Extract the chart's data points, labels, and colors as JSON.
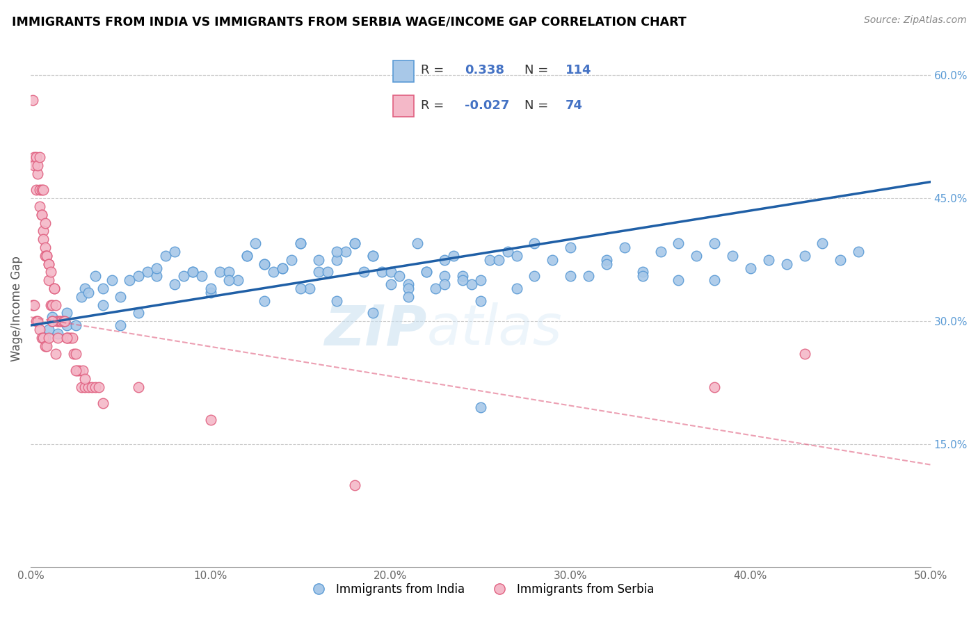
{
  "title": "IMMIGRANTS FROM INDIA VS IMMIGRANTS FROM SERBIA WAGE/INCOME GAP CORRELATION CHART",
  "source": "Source: ZipAtlas.com",
  "ylabel": "Wage/Income Gap",
  "xlim": [
    0.0,
    0.5
  ],
  "ylim": [
    0.0,
    0.63
  ],
  "xticks": [
    0.0,
    0.1,
    0.2,
    0.3,
    0.4,
    0.5
  ],
  "yticks_right": [
    0.15,
    0.3,
    0.45,
    0.6
  ],
  "ytick_labels_right": [
    "15.0%",
    "30.0%",
    "45.0%",
    "60.0%"
  ],
  "xtick_labels": [
    "0.0%",
    "10.0%",
    "20.0%",
    "30.0%",
    "40.0%",
    "50.0%"
  ],
  "india_color": "#a8c8e8",
  "india_edge": "#5b9bd5",
  "serbia_color": "#f4b8c8",
  "serbia_edge": "#e06080",
  "india_line_color": "#1f5fa6",
  "serbia_line_color": "#f4b8c8",
  "serbia_line_edge": "#e06080",
  "watermark_zip": "ZIP",
  "watermark_atlas": "atlas",
  "india_x": [
    0.02,
    0.03,
    0.04,
    0.05,
    0.06,
    0.065,
    0.07,
    0.075,
    0.08,
    0.085,
    0.09,
    0.095,
    0.1,
    0.105,
    0.11,
    0.115,
    0.12,
    0.125,
    0.13,
    0.135,
    0.14,
    0.145,
    0.15,
    0.155,
    0.16,
    0.165,
    0.17,
    0.175,
    0.18,
    0.185,
    0.19,
    0.195,
    0.2,
    0.205,
    0.21,
    0.215,
    0.22,
    0.225,
    0.23,
    0.235,
    0.24,
    0.245,
    0.25,
    0.255,
    0.26,
    0.265,
    0.27,
    0.28,
    0.29,
    0.3,
    0.31,
    0.32,
    0.33,
    0.34,
    0.35,
    0.36,
    0.37,
    0.38,
    0.39,
    0.4,
    0.41,
    0.42,
    0.43,
    0.44,
    0.45,
    0.46,
    0.008,
    0.01,
    0.012,
    0.015,
    0.018,
    0.02,
    0.025,
    0.028,
    0.032,
    0.036,
    0.04,
    0.045,
    0.05,
    0.055,
    0.06,
    0.07,
    0.08,
    0.09,
    0.1,
    0.11,
    0.12,
    0.13,
    0.14,
    0.15,
    0.16,
    0.17,
    0.18,
    0.19,
    0.2,
    0.21,
    0.22,
    0.23,
    0.24,
    0.25,
    0.28,
    0.3,
    0.32,
    0.34,
    0.36,
    0.38,
    0.13,
    0.15,
    0.17,
    0.19,
    0.21,
    0.23,
    0.25,
    0.27
  ],
  "india_y": [
    0.295,
    0.34,
    0.34,
    0.295,
    0.31,
    0.36,
    0.355,
    0.38,
    0.385,
    0.355,
    0.36,
    0.355,
    0.335,
    0.36,
    0.36,
    0.35,
    0.38,
    0.395,
    0.37,
    0.36,
    0.365,
    0.375,
    0.395,
    0.34,
    0.36,
    0.36,
    0.375,
    0.385,
    0.395,
    0.36,
    0.38,
    0.36,
    0.36,
    0.355,
    0.345,
    0.395,
    0.36,
    0.34,
    0.375,
    0.38,
    0.355,
    0.345,
    0.195,
    0.375,
    0.375,
    0.385,
    0.38,
    0.395,
    0.375,
    0.39,
    0.355,
    0.375,
    0.39,
    0.36,
    0.385,
    0.395,
    0.38,
    0.395,
    0.38,
    0.365,
    0.375,
    0.37,
    0.38,
    0.395,
    0.375,
    0.385,
    0.28,
    0.29,
    0.305,
    0.285,
    0.3,
    0.31,
    0.295,
    0.33,
    0.335,
    0.355,
    0.32,
    0.35,
    0.33,
    0.35,
    0.355,
    0.365,
    0.345,
    0.36,
    0.34,
    0.35,
    0.38,
    0.37,
    0.365,
    0.395,
    0.375,
    0.385,
    0.395,
    0.38,
    0.345,
    0.34,
    0.36,
    0.355,
    0.35,
    0.35,
    0.355,
    0.355,
    0.37,
    0.355,
    0.35,
    0.35,
    0.325,
    0.34,
    0.325,
    0.31,
    0.33,
    0.345,
    0.325,
    0.34
  ],
  "serbia_x": [
    0.001,
    0.002,
    0.002,
    0.003,
    0.003,
    0.004,
    0.004,
    0.005,
    0.005,
    0.005,
    0.006,
    0.006,
    0.006,
    0.007,
    0.007,
    0.007,
    0.008,
    0.008,
    0.008,
    0.009,
    0.009,
    0.01,
    0.01,
    0.01,
    0.011,
    0.011,
    0.012,
    0.012,
    0.013,
    0.013,
    0.014,
    0.014,
    0.015,
    0.015,
    0.016,
    0.017,
    0.018,
    0.019,
    0.02,
    0.021,
    0.022,
    0.023,
    0.024,
    0.025,
    0.026,
    0.027,
    0.028,
    0.029,
    0.03,
    0.032,
    0.034,
    0.036,
    0.038,
    0.04,
    0.001,
    0.002,
    0.003,
    0.004,
    0.005,
    0.006,
    0.007,
    0.008,
    0.009,
    0.01,
    0.012,
    0.015,
    0.02,
    0.025,
    0.03,
    0.06,
    0.1,
    0.18,
    0.38,
    0.43
  ],
  "serbia_y": [
    0.57,
    0.5,
    0.49,
    0.5,
    0.46,
    0.48,
    0.49,
    0.44,
    0.5,
    0.46,
    0.46,
    0.43,
    0.43,
    0.46,
    0.41,
    0.4,
    0.39,
    0.42,
    0.38,
    0.38,
    0.38,
    0.37,
    0.37,
    0.35,
    0.36,
    0.32,
    0.3,
    0.32,
    0.34,
    0.34,
    0.32,
    0.26,
    0.3,
    0.3,
    0.3,
    0.3,
    0.3,
    0.3,
    0.28,
    0.28,
    0.28,
    0.28,
    0.26,
    0.26,
    0.24,
    0.24,
    0.22,
    0.24,
    0.22,
    0.22,
    0.22,
    0.22,
    0.22,
    0.2,
    0.32,
    0.32,
    0.3,
    0.3,
    0.29,
    0.28,
    0.28,
    0.27,
    0.27,
    0.28,
    0.3,
    0.28,
    0.28,
    0.24,
    0.23,
    0.22,
    0.18,
    0.1,
    0.22,
    0.26
  ]
}
